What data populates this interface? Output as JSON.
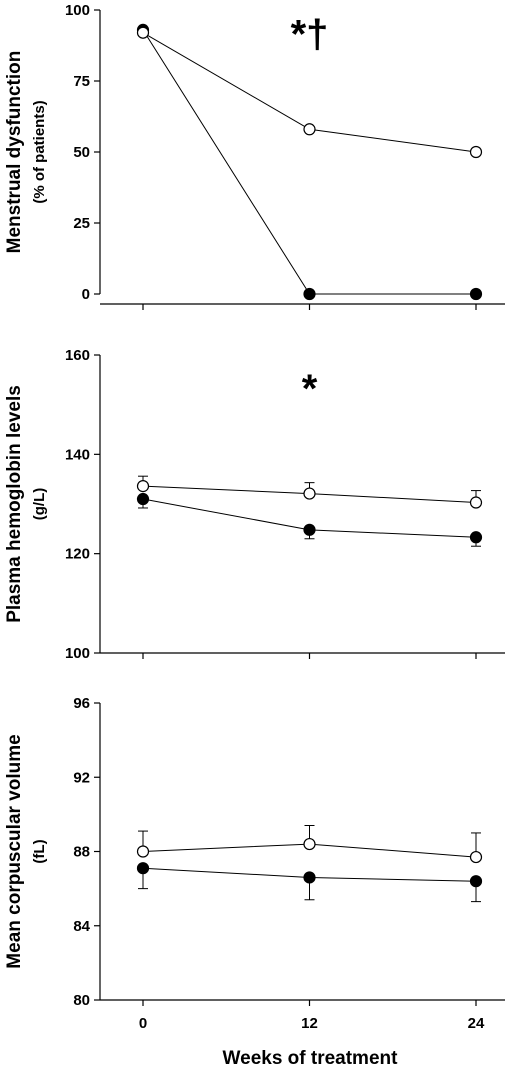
{
  "xlabel": "Weeks of treatment",
  "chart_data": [
    {
      "type": "line",
      "ylabel": "Menstrual dysfunction",
      "ylabel2": "(% of patients)",
      "ylim": [
        0,
        100
      ],
      "yticks": [
        0,
        25,
        50,
        75,
        100
      ],
      "xticks": [
        0,
        12,
        24
      ],
      "annotation": "*†",
      "annotation_x": 12,
      "annotation_y": 91,
      "series": [
        {
          "marker": "filled",
          "x": [
            0,
            12,
            24
          ],
          "values": [
            93,
            0,
            0
          ],
          "err": [
            0,
            0,
            0
          ]
        },
        {
          "marker": "open",
          "x": [
            0,
            12,
            24
          ],
          "values": [
            92,
            58,
            50
          ],
          "err": [
            0,
            0,
            0
          ]
        }
      ]
    },
    {
      "type": "line",
      "ylabel": "Plasma hemoglobin levels",
      "ylabel2": "(g/L)",
      "ylim": [
        100,
        160
      ],
      "yticks": [
        100,
        120,
        140,
        160
      ],
      "xticks": [
        0,
        12,
        24
      ],
      "annotation": "*",
      "annotation_x": 12,
      "annotation_y": 153,
      "series": [
        {
          "marker": "filled",
          "x": [
            0,
            12,
            24
          ],
          "values": [
            131,
            124.8,
            123.3
          ],
          "err": [
            1.8,
            1.8,
            1.8
          ]
        },
        {
          "marker": "open",
          "x": [
            0,
            12,
            24
          ],
          "values": [
            133.6,
            132.1,
            130.3
          ],
          "err": [
            2.0,
            2.2,
            2.4
          ]
        }
      ]
    },
    {
      "type": "line",
      "ylabel": "Mean corpuscular volume",
      "ylabel2": "(fL)",
      "ylim": [
        80,
        96
      ],
      "yticks": [
        80,
        84,
        88,
        92,
        96
      ],
      "xticks": [
        0,
        12,
        24
      ],
      "annotation": "",
      "series": [
        {
          "marker": "filled",
          "x": [
            0,
            12,
            24
          ],
          "values": [
            87.1,
            86.6,
            86.4
          ],
          "err": [
            1.1,
            1.2,
            1.1
          ]
        },
        {
          "marker": "open",
          "x": [
            0,
            12,
            24
          ],
          "values": [
            88,
            88.4,
            87.7
          ],
          "err": [
            1.1,
            1.0,
            1.3
          ]
        }
      ]
    }
  ]
}
